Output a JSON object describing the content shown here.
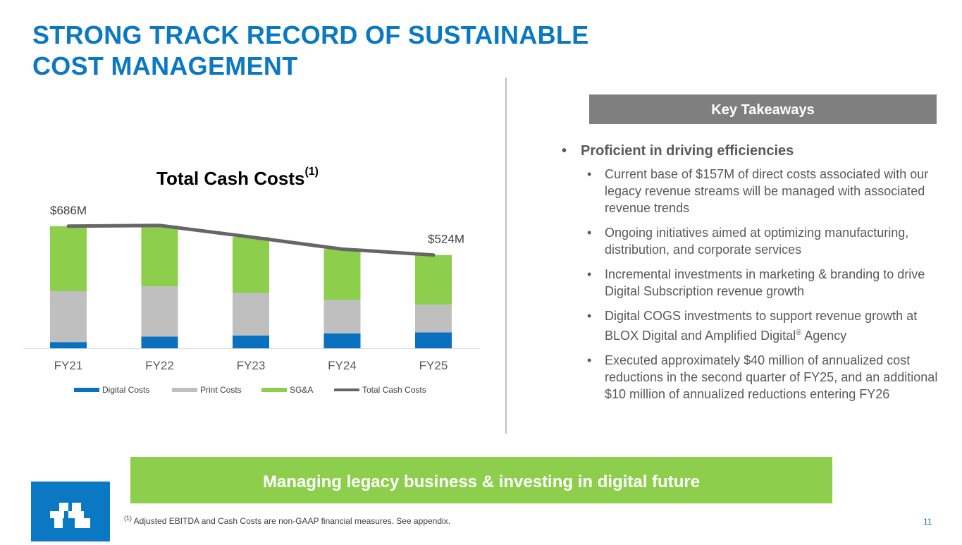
{
  "slide": {
    "title_line1": "STRONG TRACK RECORD OF SUSTAINABLE",
    "title_line2": "COST MANAGEMENT",
    "key_takeaways_header": "Key Takeaways",
    "main_bullet": "Proficient in driving efficiencies",
    "sub_bullets": [
      "Current base of $157M of direct costs associated with our legacy revenue streams will be managed with associated revenue trends",
      "Ongoing initiatives aimed at optimizing manufacturing, distribution, and corporate services",
      "Incremental investments in marketing & branding to drive Digital Subscription revenue growth",
      "Executed approximately $40 million of annualized cost reductions in the second quarter of FY25, and an additional $10 million of annualized reductions entering FY26"
    ],
    "sub_bullet_4a": "Digital COGS investments to support revenue growth at BLOX Digital and Amplified Digital",
    "sub_bullet_4b": " Agency",
    "registered_mark": "®",
    "bullet_char": "•",
    "banner": "Managing legacy business & investing in digital future",
    "footnote_marker": "(1)",
    "footnote": " Adjusted EBITDA and Cash Costs are non-GAAP financial measures. See appendix.",
    "page_number": "11",
    "colors": {
      "title": "#0a78c2",
      "banner": "#8dcf4c",
      "key_box": "#7f7f7f",
      "logo": "#0a78c2"
    }
  },
  "chart_data": {
    "type": "bar",
    "stacked": true,
    "title": "Total Cash Costs",
    "title_superscript": "(1)",
    "categories": [
      "FY21",
      "FY22",
      "FY23",
      "FY24",
      "FY25"
    ],
    "series": [
      {
        "name": "Digital Costs",
        "type": "bar",
        "color": "#0a70c0",
        "values": [
          35,
          66,
          72,
          84,
          89
        ]
      },
      {
        "name": "Print Costs",
        "type": "bar",
        "color": "#bfbfbf",
        "values": [
          286,
          282,
          239,
          189,
          157
        ]
      },
      {
        "name": "SG&A",
        "type": "bar",
        "color": "#8dcf4c",
        "values": [
          365,
          342,
          314,
          284,
          278
        ]
      },
      {
        "name": "Total Cash Costs",
        "type": "line",
        "color": "#666666",
        "values": [
          686,
          690,
          625,
          557,
          524
        ]
      }
    ],
    "data_labels": [
      {
        "category": "FY21",
        "text": "$686M"
      },
      {
        "category": "FY25",
        "text": "$524M"
      }
    ],
    "ylim": [
      0,
      700
    ],
    "grid": false,
    "legend_position": "bottom"
  }
}
